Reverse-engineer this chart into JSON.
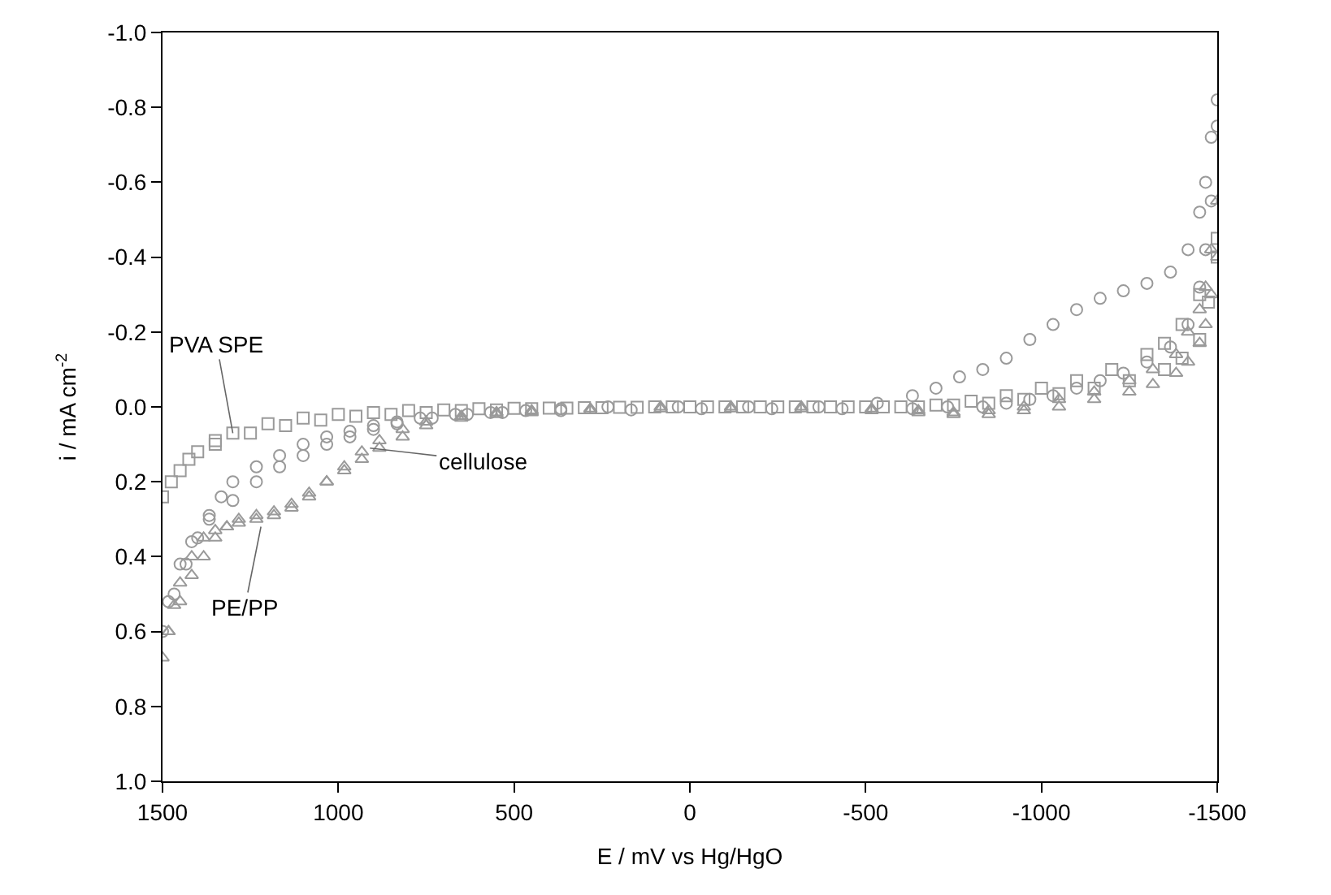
{
  "chart_data": {
    "type": "scatter",
    "xlabel": "E / mV vs Hg/HgO",
    "ylabel": "i / mA cm$^{-2}$",
    "xlim": [
      1500,
      -1500
    ],
    "xticks": [
      1500,
      1000,
      500,
      0,
      -500,
      -1000,
      -1500
    ],
    "ylim": [
      1.0,
      -1.0
    ],
    "yticks": [
      {
        "value": -1.0,
        "label": "-1.0"
      },
      {
        "value": -0.8,
        "label": "-0.8"
      },
      {
        "value": -0.6,
        "label": "-0.6"
      },
      {
        "value": -0.4,
        "label": "-0.4"
      },
      {
        "value": -0.2,
        "label": "-0.2"
      },
      {
        "value": 0.0,
        "label": "0.0"
      },
      {
        "value": 0.2,
        "label": "0.2"
      },
      {
        "value": 0.4,
        "label": "0.4"
      },
      {
        "value": 0.6,
        "label": "0.6"
      },
      {
        "value": 0.8,
        "label": "0.8"
      },
      {
        "value": 1.0,
        "label": "1.0"
      }
    ],
    "series": [
      {
        "color": "#9a9a9a",
        "marker": "square",
        "x": [
          1500,
          1450,
          1400,
          1350,
          1300,
          1200,
          1100,
          1000,
          900,
          800,
          700,
          600,
          500,
          400,
          300,
          200,
          100,
          0,
          -100,
          -200,
          -300,
          -400,
          -500,
          -600,
          -700,
          -800,
          -900,
          -1000,
          -1100,
          -1200,
          -1300,
          -1350,
          -1400,
          -1450,
          -1500,
          -1500,
          -1475,
          -1450,
          -1400,
          -1350,
          -1250,
          -1150,
          -1050,
          -950,
          -850,
          -750,
          -650,
          -550,
          -450,
          -350,
          -250,
          -150,
          -50,
          50,
          150,
          250,
          350,
          450,
          550,
          650,
          750,
          850,
          950,
          1050,
          1150,
          1250,
          1350,
          1425,
          1475
        ],
        "values": [
          0.24,
          0.17,
          0.12,
          0.09,
          0.07,
          0.045,
          0.03,
          0.02,
          0.015,
          0.01,
          0.008,
          0.005,
          0.004,
          0.003,
          0.002,
          0.001,
          0,
          0,
          0,
          0,
          0,
          0,
          0,
          0,
          -0.005,
          -0.015,
          -0.03,
          -0.05,
          -0.07,
          -0.1,
          -0.14,
          -0.17,
          -0.22,
          -0.3,
          -0.45,
          -0.4,
          -0.28,
          -0.18,
          -0.13,
          -0.1,
          -0.07,
          -0.05,
          -0.035,
          -0.02,
          -0.01,
          -0.005,
          0,
          0,
          0,
          0,
          0,
          0,
          0,
          0,
          0.001,
          0.002,
          0.003,
          0.005,
          0.008,
          0.01,
          0.015,
          0.02,
          0.025,
          0.035,
          0.05,
          0.07,
          0.1,
          0.14,
          0.2
        ]
      },
      {
        "color": "#9a9a9a",
        "marker": "circle",
        "x": [
          1500,
          1467,
          1433,
          1400,
          1367,
          1333,
          1300,
          1233,
          1167,
          1100,
          1033,
          967,
          900,
          833,
          767,
          667,
          567,
          467,
          367,
          233,
          33,
          -167,
          -367,
          -533,
          -633,
          -700,
          -767,
          -833,
          -900,
          -967,
          -1033,
          -1100,
          -1167,
          -1233,
          -1300,
          -1367,
          -1417,
          -1450,
          -1467,
          -1483,
          -1500,
          -1500,
          -1483,
          -1467,
          -1450,
          -1417,
          -1367,
          -1300,
          -1233,
          -1167,
          -1100,
          -1033,
          -967,
          -900,
          -833,
          -733,
          -633,
          -433,
          -233,
          -33,
          167,
          367,
          533,
          633,
          733,
          833,
          900,
          967,
          1033,
          1100,
          1167,
          1233,
          1300,
          1367,
          1417,
          1450,
          1483
        ],
        "values": [
          0.6,
          0.5,
          0.42,
          0.35,
          0.29,
          0.24,
          0.2,
          0.16,
          0.13,
          0.1,
          0.08,
          0.065,
          0.05,
          0.04,
          0.03,
          0.02,
          0.015,
          0.01,
          0.005,
          0,
          0,
          0,
          0,
          -0.01,
          -0.03,
          -0.05,
          -0.08,
          -0.1,
          -0.13,
          -0.18,
          -0.22,
          -0.26,
          -0.29,
          -0.31,
          -0.33,
          -0.36,
          -0.42,
          -0.52,
          -0.6,
          -0.72,
          -0.82,
          -0.75,
          -0.55,
          -0.42,
          -0.32,
          -0.22,
          -0.16,
          -0.12,
          -0.09,
          -0.07,
          -0.05,
          -0.03,
          -0.02,
          -0.01,
          0,
          0,
          0.005,
          0.005,
          0.005,
          0.005,
          0.008,
          0.01,
          0.015,
          0.02,
          0.03,
          0.045,
          0.06,
          0.08,
          0.1,
          0.13,
          0.16,
          0.2,
          0.25,
          0.3,
          0.36,
          0.42,
          0.52
        ]
      },
      {
        "color": "#9a9a9a",
        "marker": "triangle",
        "x": [
          1500,
          1483,
          1467,
          1450,
          1417,
          1383,
          1350,
          1317,
          1283,
          1233,
          1183,
          1133,
          1083,
          1033,
          983,
          933,
          883,
          817,
          750,
          650,
          550,
          450,
          283,
          83,
          -117,
          -317,
          -517,
          -650,
          -750,
          -850,
          -950,
          -1050,
          -1150,
          -1250,
          -1317,
          -1383,
          -1417,
          -1450,
          -1467,
          -1483,
          -1500,
          -1500,
          -1483,
          -1467,
          -1450,
          -1417,
          -1383,
          -1317,
          -1250,
          -1150,
          -1050,
          -950,
          -850,
          -750,
          -650,
          -517,
          -317,
          -117,
          83,
          283,
          450,
          550,
          650,
          750,
          817,
          883,
          933,
          983,
          1033,
          1083,
          1133,
          1183,
          1233,
          1283,
          1317,
          1350,
          1383,
          1417,
          1450,
          1483
        ],
        "values": [
          0.67,
          0.6,
          0.53,
          0.47,
          0.4,
          0.35,
          0.33,
          0.32,
          0.31,
          0.3,
          0.29,
          0.27,
          0.24,
          0.2,
          0.16,
          0.12,
          0.09,
          0.06,
          0.04,
          0.025,
          0.015,
          0.01,
          0.005,
          0,
          0,
          0,
          0.005,
          0.01,
          0.015,
          0.01,
          0,
          -0.02,
          -0.04,
          -0.07,
          -0.1,
          -0.14,
          -0.2,
          -0.26,
          -0.32,
          -0.42,
          -0.55,
          -0.4,
          -0.3,
          -0.22,
          -0.17,
          -0.12,
          -0.09,
          -0.06,
          -0.04,
          -0.02,
          0,
          0.01,
          0.02,
          0.02,
          0.015,
          0.01,
          0.005,
          0.005,
          0.005,
          0.01,
          0.015,
          0.02,
          0.03,
          0.05,
          0.08,
          0.11,
          0.14,
          0.17,
          0.2,
          0.23,
          0.26,
          0.28,
          0.29,
          0.3,
          0.32,
          0.35,
          0.4,
          0.45,
          0.52,
          0.6
        ]
      }
    ],
    "annotations": [
      {
        "text": "PVA SPE",
        "x": 1300,
        "y": 0.07
      },
      {
        "text": "cellulose",
        "x": 910,
        "y": 0.11
      },
      {
        "text": "PE/PP",
        "x": 1220,
        "y": 0.32
      }
    ]
  }
}
